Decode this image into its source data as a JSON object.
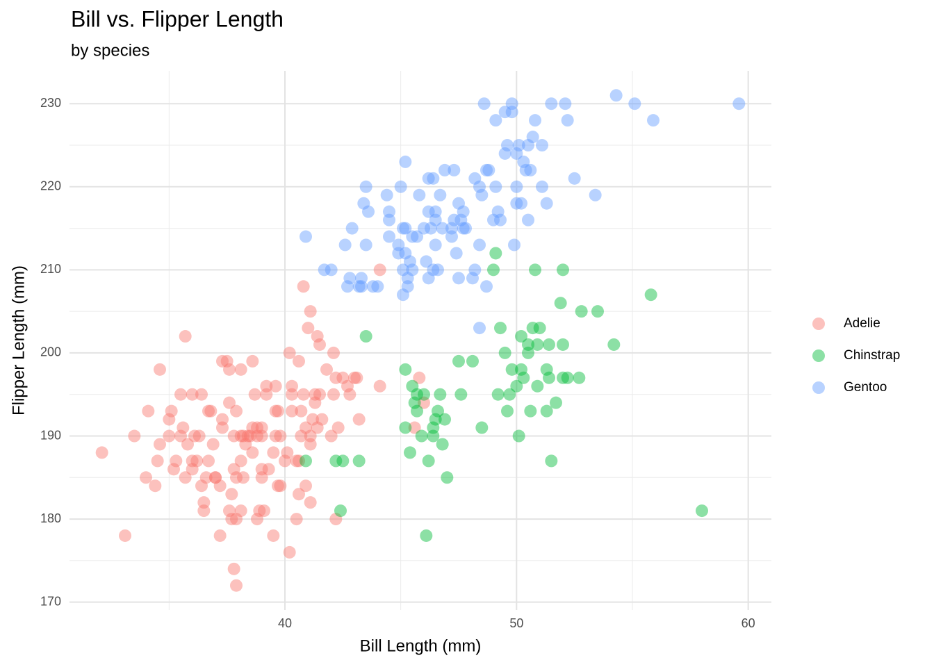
{
  "chart_data": {
    "type": "scatter",
    "title": "Bill vs. Flipper Length",
    "subtitle": "by species",
    "x_label": "Bill Length (mm)",
    "y_label": "Flipper Length (mm)",
    "xlim": [
      30.7,
      61.0
    ],
    "ylim": [
      169.05,
      233.95
    ],
    "xticks": [
      40,
      50,
      60
    ],
    "yticks": [
      170,
      180,
      190,
      200,
      210,
      220,
      230
    ],
    "x_minor_ticks": [
      35,
      45,
      55
    ],
    "y_minor_ticks": [
      175,
      185,
      195,
      205,
      215,
      225
    ],
    "grid": true,
    "legend": "right",
    "opacity": 0.45,
    "series": [
      {
        "name": "Adelie",
        "color": "#F8766D",
        "x": [
          32.1,
          33.1,
          33.5,
          34.0,
          34.1,
          34.4,
          34.5,
          34.6,
          34.6,
          35.0,
          35.0,
          35.1,
          35.2,
          35.3,
          35.5,
          35.6,
          35.5,
          35.7,
          35.7,
          35.8,
          36.0,
          36.0,
          36.1,
          36.0,
          36.2,
          36.3,
          36.4,
          36.4,
          36.5,
          36.5,
          36.6,
          36.7,
          36.8,
          36.7,
          36.9,
          37.0,
          37.0,
          37.2,
          37.2,
          37.3,
          37.3,
          37.3,
          37.5,
          37.6,
          37.6,
          37.6,
          37.7,
          37.7,
          37.8,
          37.8,
          37.8,
          37.9,
          37.9,
          37.9,
          37.9,
          38.1,
          38.1,
          38.1,
          38.1,
          38.2,
          38.2,
          38.3,
          38.4,
          38.5,
          38.6,
          38.6,
          38.6,
          38.7,
          38.8,
          38.8,
          38.8,
          38.9,
          39.0,
          39.0,
          39.0,
          39.0,
          39.1,
          39.2,
          39.2,
          39.3,
          39.5,
          39.5,
          39.6,
          39.6,
          39.6,
          39.7,
          39.7,
          39.8,
          39.8,
          40.0,
          40.1,
          40.2,
          40.2,
          40.3,
          40.3,
          40.3,
          40.5,
          40.5,
          40.6,
          40.6,
          40.6,
          40.7,
          40.7,
          40.8,
          40.8,
          40.9,
          40.9,
          41.0,
          41.1,
          41.1,
          41.1,
          41.1,
          41.2,
          41.3,
          41.3,
          41.4,
          41.4,
          41.5,
          41.5,
          41.6,
          41.8,
          42.0,
          42.1,
          42.1,
          42.2,
          42.2,
          42.3,
          42.5,
          42.7,
          42.8,
          43.0,
          43.1,
          43.2,
          44.1,
          44.1,
          45.6,
          45.8,
          46.0
        ],
        "y": [
          188,
          178,
          190,
          185,
          193,
          184,
          187,
          189,
          198,
          190,
          192,
          193,
          186,
          187,
          195,
          191,
          190,
          202,
          185,
          189,
          195,
          187,
          190,
          186,
          187,
          190,
          195,
          184,
          182,
          181,
          185,
          193,
          193,
          187,
          189,
          185,
          185,
          184,
          178,
          199,
          192,
          191,
          199,
          194,
          198,
          181,
          183,
          180,
          190,
          186,
          174,
          172,
          193,
          180,
          185,
          198,
          190,
          187,
          181,
          190,
          185,
          189,
          190,
          190,
          199,
          191,
          188,
          195,
          190,
          191,
          180,
          181,
          186,
          185,
          190,
          191,
          181,
          196,
          195,
          186,
          188,
          178,
          196,
          193,
          190,
          184,
          193,
          190,
          184,
          187,
          188,
          200,
          176,
          196,
          193,
          195,
          187,
          180,
          199,
          183,
          187,
          193,
          190,
          208,
          195,
          184,
          191,
          203,
          182,
          205,
          190,
          189,
          192,
          194,
          195,
          202,
          191,
          201,
          195,
          192,
          198,
          190,
          200,
          195,
          197,
          180,
          191,
          197,
          196,
          195,
          197,
          197,
          192,
          210,
          196,
          191,
          197,
          194
        ]
      },
      {
        "name": "Chinstrap",
        "color": "#00BA38",
        "x": [
          40.9,
          42.2,
          42.5,
          42.4,
          43.2,
          43.5,
          45.2,
          45.2,
          45.4,
          45.5,
          45.6,
          45.7,
          45.7,
          45.9,
          46.0,
          46.1,
          46.2,
          46.4,
          46.4,
          46.5,
          46.6,
          46.7,
          46.8,
          46.9,
          47.0,
          47.5,
          47.6,
          48.1,
          48.5,
          49.0,
          49.1,
          49.2,
          49.3,
          49.5,
          49.6,
          49.7,
          49.8,
          50.0,
          50.1,
          50.2,
          50.2,
          50.3,
          50.5,
          50.5,
          50.6,
          50.7,
          50.8,
          50.9,
          50.9,
          51.0,
          51.3,
          51.3,
          51.4,
          51.4,
          51.5,
          51.7,
          51.9,
          52.0,
          52.0,
          52.0,
          52.2,
          52.7,
          52.8,
          53.5,
          54.2,
          55.8,
          58.0
        ],
        "y": [
          187,
          187,
          187,
          181,
          187,
          202,
          198,
          191,
          188,
          196,
          194,
          193,
          195,
          190,
          195,
          178,
          187,
          191,
          190,
          192,
          193,
          195,
          189,
          192,
          185,
          199,
          195,
          199,
          191,
          210,
          212,
          195,
          203,
          200,
          193,
          195,
          198,
          196,
          190,
          202,
          198,
          197,
          201,
          200,
          193,
          203,
          210,
          201,
          196,
          203,
          193,
          198,
          201,
          197,
          187,
          194,
          206,
          197,
          201,
          210,
          197,
          197,
          205,
          205,
          201,
          207,
          181
        ]
      },
      {
        "name": "Gentoo",
        "color": "#619CFF",
        "x": [
          40.9,
          41.7,
          42.0,
          42.6,
          42.7,
          42.8,
          42.9,
          43.2,
          43.3,
          43.3,
          43.4,
          43.5,
          43.5,
          43.6,
          43.8,
          44.0,
          44.4,
          44.5,
          44.5,
          44.5,
          44.9,
          44.9,
          45.0,
          45.1,
          45.1,
          45.1,
          45.2,
          45.2,
          45.2,
          45.3,
          45.3,
          45.4,
          45.5,
          45.5,
          45.7,
          45.8,
          46.0,
          46.1,
          46.2,
          46.2,
          46.2,
          46.3,
          46.4,
          46.4,
          46.5,
          46.5,
          46.5,
          46.6,
          46.7,
          46.8,
          46.9,
          47.2,
          47.2,
          47.3,
          47.3,
          47.4,
          47.5,
          47.5,
          47.6,
          47.7,
          47.7,
          47.8,
          48.1,
          48.2,
          48.2,
          48.4,
          48.4,
          48.4,
          48.5,
          48.6,
          48.7,
          48.7,
          48.8,
          49.0,
          49.1,
          49.1,
          49.2,
          49.3,
          49.5,
          49.5,
          49.6,
          49.8,
          49.8,
          49.9,
          50.0,
          50.0,
          50.0,
          50.1,
          50.2,
          50.3,
          50.4,
          50.5,
          50.5,
          50.6,
          50.7,
          50.8,
          51.1,
          51.1,
          51.3,
          51.5,
          52.1,
          52.2,
          52.5,
          53.4,
          54.3,
          55.1,
          55.9,
          59.6
        ],
        "y": [
          214,
          210,
          210,
          213,
          208,
          209,
          215,
          208,
          209,
          208,
          218,
          213,
          220,
          217,
          208,
          208,
          219,
          216,
          217,
          214,
          212,
          213,
          220,
          215,
          210,
          207,
          223,
          215,
          212,
          209,
          208,
          211,
          210,
          214,
          214,
          219,
          215,
          211,
          209,
          221,
          217,
          215,
          210,
          221,
          217,
          216,
          213,
          210,
          219,
          215,
          222,
          215,
          214,
          216,
          222,
          212,
          218,
          209,
          216,
          215,
          217,
          215,
          209,
          221,
          210,
          213,
          220,
          203,
          219,
          230,
          222,
          208,
          222,
          216,
          228,
          220,
          217,
          216,
          229,
          224,
          225,
          230,
          229,
          213,
          220,
          224,
          218,
          225,
          218,
          223,
          222,
          225,
          216,
          222,
          226,
          228,
          225,
          220,
          218,
          230,
          230,
          228,
          221,
          219,
          231,
          230,
          228,
          230
        ]
      }
    ]
  }
}
